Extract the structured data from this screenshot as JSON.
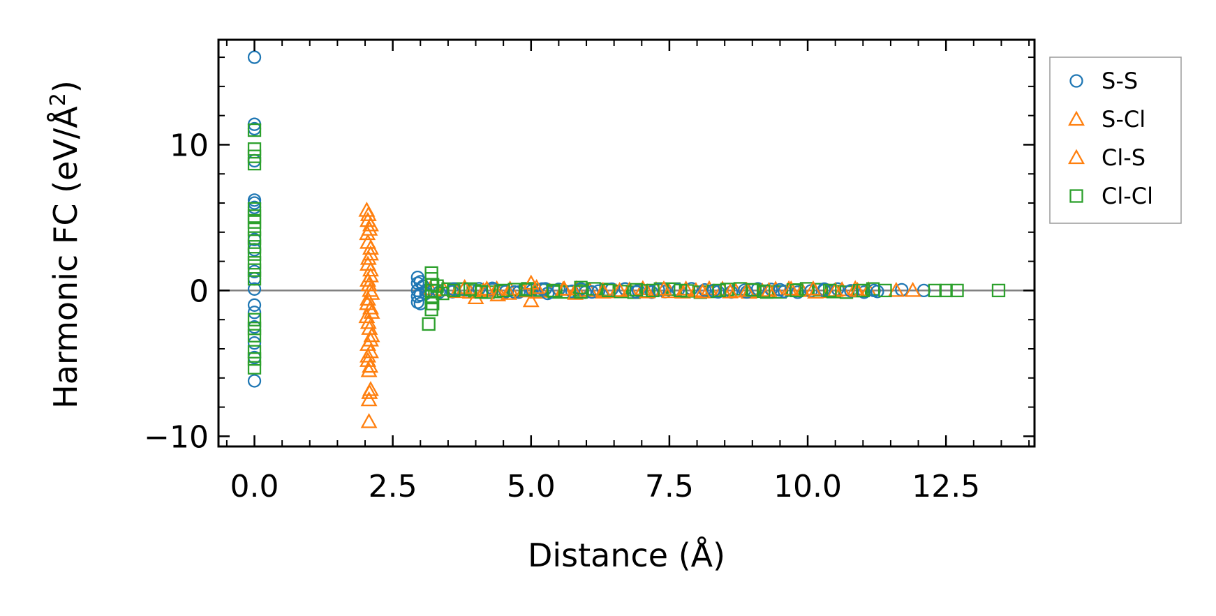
{
  "chart_data": {
    "type": "scatter",
    "title": "",
    "xlabel": "Distance (Å)",
    "ylabel": "Harmonic FC (eV/Å",
    "ylabel_sup": "2",
    "ylabel_end": ")",
    "xlim": [
      -0.65,
      14.1
    ],
    "ylim": [
      -10.7,
      17.2
    ],
    "xticks": [
      0.0,
      2.5,
      5.0,
      7.5,
      10.0,
      12.5
    ],
    "xtick_labels": [
      "0.0",
      "2.5",
      "5.0",
      "7.5",
      "10.0",
      "12.5"
    ],
    "yticks": [
      -10,
      0,
      10
    ],
    "ytick_labels": [
      "−10",
      "0",
      "10"
    ],
    "zero_line": true,
    "grid": false,
    "legend_position": "outside-top-right",
    "series": [
      {
        "name": "S-S",
        "marker": "circle",
        "color": "#1f77b4",
        "points": [
          [
            0.0,
            16.0
          ],
          [
            0.0,
            11.4
          ],
          [
            0.0,
            11.1
          ],
          [
            0.0,
            8.9
          ],
          [
            0.0,
            6.2
          ],
          [
            0.0,
            6.0
          ],
          [
            0.0,
            5.7
          ],
          [
            0.0,
            3.5
          ],
          [
            0.0,
            2.8
          ],
          [
            0.0,
            1.3
          ],
          [
            0.0,
            0.8
          ],
          [
            0.0,
            0.1
          ],
          [
            0.0,
            -1.0
          ],
          [
            0.0,
            -1.5
          ],
          [
            0.0,
            -2.5
          ],
          [
            0.0,
            -3.6
          ],
          [
            0.0,
            -4.6
          ],
          [
            0.0,
            -6.2
          ],
          [
            2.95,
            0.9
          ],
          [
            2.95,
            0.5
          ],
          [
            2.95,
            0.0
          ],
          [
            2.95,
            -0.4
          ],
          [
            2.95,
            -0.8
          ],
          [
            3.0,
            0.6
          ],
          [
            3.0,
            -0.3
          ],
          [
            3.0,
            -0.9
          ],
          [
            3.05,
            0.3
          ],
          [
            3.1,
            -0.2
          ],
          [
            3.6,
            0.1
          ],
          [
            4.3,
            0.15
          ],
          [
            4.7,
            -0.1
          ],
          [
            5.2,
            0.1
          ],
          [
            5.3,
            -0.2
          ],
          [
            5.9,
            0.1
          ],
          [
            6.1,
            -0.1
          ],
          [
            6.9,
            -0.1
          ],
          [
            7.3,
            0.05
          ],
          [
            8.3,
            0.0
          ],
          [
            8.9,
            -0.1
          ],
          [
            9.5,
            0.05
          ],
          [
            10.3,
            0.0
          ],
          [
            11.2,
            0.0
          ],
          [
            11.7,
            0.05
          ],
          [
            12.1,
            0.0
          ]
        ]
      },
      {
        "name": "S-Cl",
        "marker": "triangle",
        "color": "#ff7f0e",
        "points": [
          [
            2.03,
            5.5
          ],
          [
            2.05,
            4.8
          ],
          [
            2.08,
            4.2
          ],
          [
            2.05,
            3.3
          ],
          [
            2.1,
            2.5
          ],
          [
            2.05,
            1.8
          ],
          [
            2.1,
            1.0
          ],
          [
            2.07,
            0.4
          ],
          [
            2.12,
            -0.2
          ],
          [
            2.05,
            -0.6
          ],
          [
            2.1,
            -1.2
          ],
          [
            2.03,
            -1.8
          ],
          [
            2.08,
            -2.6
          ],
          [
            2.12,
            -3.1
          ],
          [
            2.05,
            -3.7
          ],
          [
            2.1,
            -4.2
          ],
          [
            2.05,
            -4.8
          ],
          [
            2.07,
            -5.5
          ],
          [
            2.1,
            -6.8
          ],
          [
            2.07,
            -7.5
          ],
          [
            2.07,
            -9.0
          ],
          [
            4.0,
            -0.5
          ],
          [
            4.2,
            0.1
          ],
          [
            4.6,
            -0.2
          ],
          [
            5.0,
            0.5
          ],
          [
            5.0,
            -0.7
          ],
          [
            5.6,
            0.1
          ],
          [
            6.3,
            0.0
          ],
          [
            7.1,
            -0.1
          ],
          [
            7.8,
            0.1
          ],
          [
            8.6,
            -0.1
          ],
          [
            9.3,
            0.0
          ],
          [
            10.1,
            0.1
          ],
          [
            10.9,
            0.0
          ],
          [
            11.6,
            0.0
          ]
        ]
      },
      {
        "name": "Cl-S",
        "marker": "triangle",
        "color": "#ff7f0e",
        "points": [
          [
            2.06,
            5.2
          ],
          [
            2.1,
            4.5
          ],
          [
            2.04,
            3.9
          ],
          [
            2.1,
            2.9
          ],
          [
            2.06,
            2.2
          ],
          [
            2.1,
            1.4
          ],
          [
            2.05,
            0.7
          ],
          [
            2.09,
            0.0
          ],
          [
            2.04,
            -0.9
          ],
          [
            2.12,
            -1.5
          ],
          [
            2.06,
            -2.2
          ],
          [
            2.1,
            -3.4
          ],
          [
            2.05,
            -4.5
          ],
          [
            2.09,
            -5.2
          ],
          [
            2.08,
            -7.0
          ],
          [
            3.8,
            0.2
          ],
          [
            4.4,
            -0.3
          ],
          [
            5.1,
            0.2
          ],
          [
            5.8,
            -0.2
          ],
          [
            6.6,
            0.0
          ],
          [
            7.4,
            0.1
          ],
          [
            8.1,
            -0.1
          ],
          [
            8.9,
            0.0
          ],
          [
            9.7,
            0.1
          ],
          [
            10.5,
            0.0
          ],
          [
            11.9,
            0.0
          ]
        ]
      },
      {
        "name": "Cl-Cl",
        "marker": "square",
        "color": "#2ca02c",
        "points": [
          [
            0.0,
            11.0
          ],
          [
            0.0,
            9.7
          ],
          [
            0.0,
            9.2
          ],
          [
            0.0,
            8.7
          ],
          [
            0.0,
            5.6
          ],
          [
            0.0,
            5.1
          ],
          [
            0.0,
            4.7
          ],
          [
            0.0,
            4.2
          ],
          [
            0.0,
            3.6
          ],
          [
            0.0,
            3.0
          ],
          [
            0.0,
            2.5
          ],
          [
            0.0,
            1.9
          ],
          [
            0.0,
            1.4
          ],
          [
            0.0,
            0.8
          ],
          [
            0.0,
            -2.0
          ],
          [
            0.0,
            -2.6
          ],
          [
            0.0,
            -3.1
          ],
          [
            0.0,
            -4.2
          ],
          [
            0.0,
            -4.7
          ],
          [
            0.0,
            -5.3
          ],
          [
            3.2,
            1.2
          ],
          [
            3.2,
            0.8
          ],
          [
            3.22,
            0.4
          ],
          [
            3.2,
            0.0
          ],
          [
            3.2,
            -0.4
          ],
          [
            3.22,
            -0.9
          ],
          [
            3.2,
            -1.3
          ],
          [
            3.15,
            -2.3
          ],
          [
            3.3,
            0.3
          ],
          [
            3.4,
            -0.2
          ],
          [
            3.6,
            0.0
          ],
          [
            3.9,
            0.1
          ],
          [
            4.1,
            -0.1
          ],
          [
            4.5,
            0.0
          ],
          [
            4.9,
            0.05
          ],
          [
            5.4,
            0.0
          ],
          [
            5.9,
            0.2
          ],
          [
            5.9,
            -0.1
          ],
          [
            6.4,
            0.0
          ],
          [
            6.9,
            0.05
          ],
          [
            7.2,
            0.0
          ],
          [
            7.7,
            0.0
          ],
          [
            8.4,
            0.0
          ],
          [
            9.0,
            0.05
          ],
          [
            9.2,
            -0.05
          ],
          [
            9.8,
            0.0
          ],
          [
            10.4,
            0.0
          ],
          [
            11.0,
            0.0
          ],
          [
            11.4,
            0.0
          ],
          [
            12.3,
            0.0
          ],
          [
            12.5,
            0.0
          ],
          [
            12.7,
            0.0
          ],
          [
            13.45,
            0.0
          ]
        ]
      }
    ],
    "band": {
      "x_min": 3.1,
      "x_max": 11.3,
      "series_colors": [
        "#1f77b4",
        "#ff7f0e",
        "#2ca02c"
      ],
      "spacing": 0.08
    }
  }
}
